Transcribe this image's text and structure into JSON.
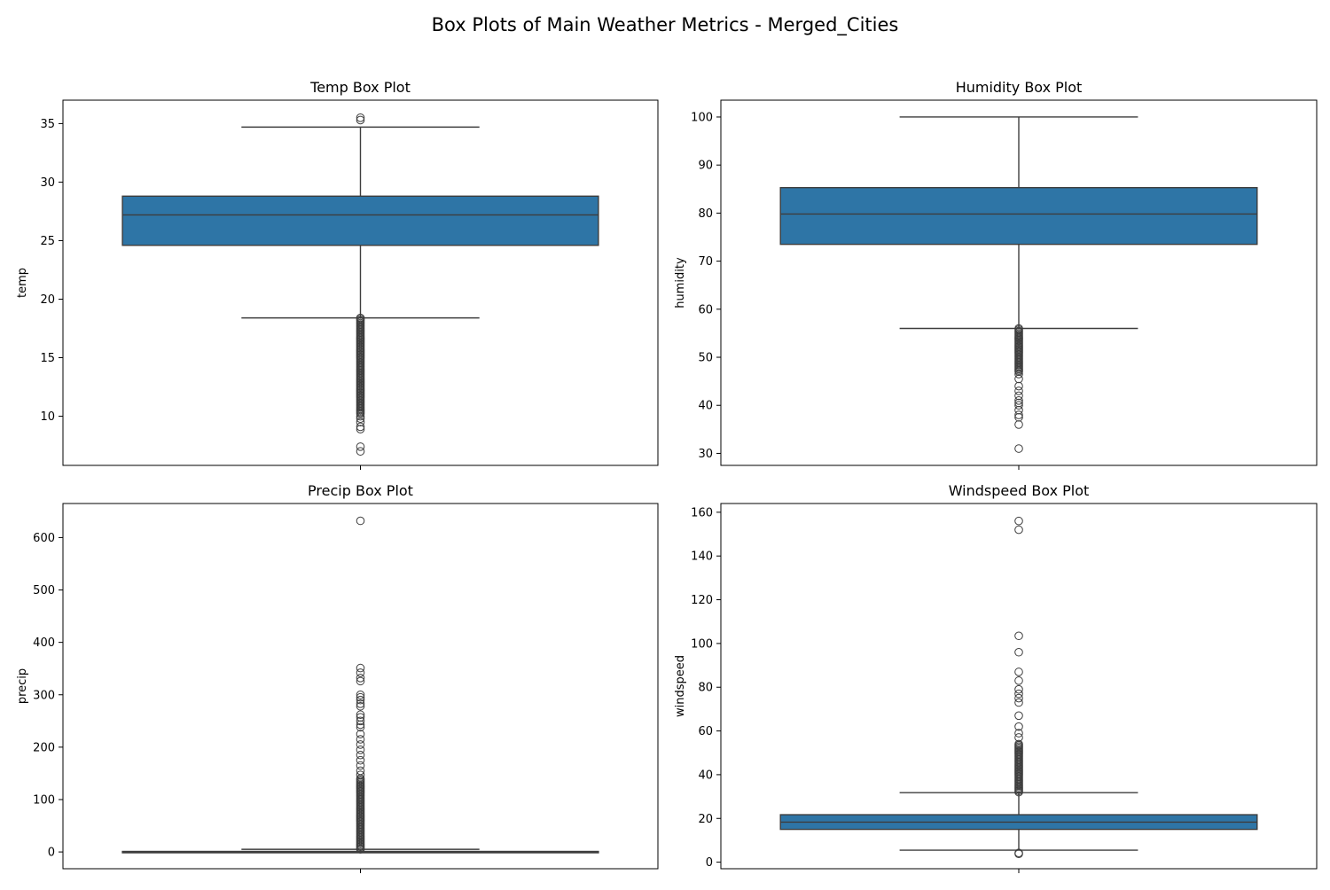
{
  "figure": {
    "title": "Box Plots of Main Weather Metrics - Merged_Cities"
  },
  "colors": {
    "box_fill": "#2e75a6",
    "line": "#3d3d3d",
    "axis": "#000000"
  },
  "chart_data": [
    {
      "type": "box",
      "title": "Temp Box Plot",
      "xlabel": "",
      "ylabel": "temp",
      "ylim": [
        5.8,
        37.0
      ],
      "yticks": [
        10,
        15,
        20,
        25,
        30,
        35
      ],
      "box": {
        "whisker_low": 18.4,
        "q1": 24.6,
        "median": 27.2,
        "q3": 28.8,
        "whisker_high": 34.7
      },
      "outlier_band": [
        10.2,
        18.4
      ],
      "outliers": [
        35.3,
        35.5,
        10.0,
        9.8,
        9.5,
        9.1,
        8.9,
        7.4,
        7.0
      ]
    },
    {
      "type": "box",
      "title": "Humidity Box Plot",
      "xlabel": "",
      "ylabel": "humidity",
      "ylim": [
        27.5,
        103.5
      ],
      "yticks": [
        30,
        40,
        50,
        60,
        70,
        80,
        90,
        100
      ],
      "box": {
        "whisker_low": 56.0,
        "q1": 73.5,
        "median": 79.8,
        "q3": 85.3,
        "whisker_high": 100.0
      },
      "outlier_band": [
        47.0,
        56.0
      ],
      "outliers": [
        46.5,
        45.5,
        44.0,
        43.0,
        42.0,
        41.0,
        40.5,
        40.0,
        39.0,
        38.0,
        37.5,
        36.0,
        31.0
      ]
    },
    {
      "type": "box",
      "title": "Precip Box Plot",
      "xlabel": "",
      "ylabel": "precip",
      "ylim": [
        -32,
        665
      ],
      "yticks": [
        0,
        100,
        200,
        300,
        400,
        500,
        600
      ],
      "box": {
        "whisker_low": 0.0,
        "q1": 0.0,
        "median": 0.0,
        "q3": 1.0,
        "whisker_high": 5.0
      },
      "outlier_band": [
        5,
        140
      ],
      "outliers": [
        632,
        351,
        342,
        332,
        326,
        300,
        295,
        290,
        283,
        278,
        262,
        257,
        250,
        243,
        238,
        225,
        215,
        205,
        195,
        185,
        175,
        165,
        155,
        147
      ]
    },
    {
      "type": "box",
      "title": "Windspeed Box Plot",
      "xlabel": "",
      "ylabel": "windspeed",
      "ylim": [
        -3,
        164
      ],
      "yticks": [
        0,
        20,
        40,
        60,
        80,
        100,
        120,
        140,
        160
      ],
      "box": {
        "whisker_low": 5.5,
        "q1": 15.0,
        "median": 18.3,
        "q3": 21.7,
        "whisker_high": 31.8
      },
      "outlier_band": [
        32,
        54
      ],
      "outliers": [
        156,
        152,
        103.5,
        96,
        87,
        83,
        79,
        77,
        75,
        73,
        67,
        62,
        59,
        57,
        4.2,
        3.8
      ]
    }
  ]
}
